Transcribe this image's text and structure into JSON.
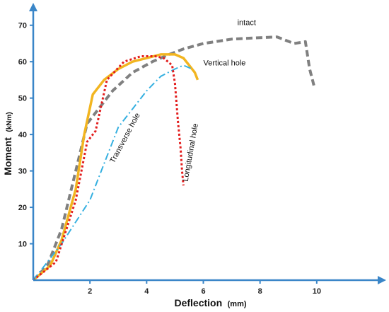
{
  "chart_data": {
    "type": "line",
    "xlabel": "Deflection",
    "xunit": "(mm)",
    "ylabel": "Moment",
    "yunit": "(kNm)",
    "xlim": [
      0,
      12
    ],
    "ylim": [
      0,
      75
    ],
    "xticks": [
      2,
      4,
      6,
      8,
      10
    ],
    "yticks": [
      10,
      20,
      30,
      40,
      50,
      60,
      70
    ],
    "grid": false,
    "axis_color": "#3a86c8",
    "series": [
      {
        "name": "intact",
        "color": "#808080",
        "dash": "9 5",
        "width": 4,
        "x": [
          0,
          0.5,
          1.0,
          1.5,
          1.9,
          2.3,
          2.8,
          3.5,
          4.2,
          4.8,
          5.3,
          6.0,
          7.0,
          8.0,
          8.6,
          9.2,
          9.6,
          9.75,
          9.85,
          9.9
        ],
        "y": [
          0,
          4,
          14,
          30,
          43,
          47,
          52,
          57,
          60,
          62,
          63.5,
          65,
          66.2,
          66.6,
          66.8,
          65,
          65.5,
          58,
          55,
          53.5
        ]
      },
      {
        "name": "Vertical hole",
        "color": "#f2b520",
        "dash": "",
        "width": 3.5,
        "x": [
          0,
          0.6,
          1.0,
          1.5,
          1.8,
          2.1,
          2.5,
          3.0,
          3.5,
          4.0,
          4.5,
          5.0,
          5.3,
          5.5,
          5.7,
          5.8
        ],
        "y": [
          0,
          4,
          11,
          25,
          40,
          51,
          55,
          58,
          60,
          61,
          62,
          62,
          61,
          59,
          57,
          55
        ]
      },
      {
        "name": "Transverse hole",
        "color": "#35b0e0",
        "dash": "10 4 2 4",
        "width": 2,
        "x": [
          0,
          1.0,
          2.0,
          2.5,
          3.0,
          3.5,
          4.0,
          4.5,
          5.0,
          5.3,
          5.6
        ],
        "y": [
          0,
          10,
          22,
          32,
          42,
          47,
          52,
          56,
          58,
          59,
          58
        ]
      },
      {
        "name": "Longitudinal hole",
        "color": "#e31e1e",
        "dash": "3 3",
        "width": 3,
        "x": [
          0,
          0.8,
          1.5,
          1.9,
          2.2,
          2.6,
          3.2,
          3.8,
          4.3,
          4.6,
          4.9,
          5.0,
          5.1,
          5.2,
          5.25,
          5.3
        ],
        "y": [
          0,
          5,
          22,
          38,
          41,
          55,
          60,
          61.5,
          61.5,
          61,
          59,
          54,
          44,
          36,
          30,
          26
        ]
      }
    ],
    "annotations": [
      {
        "text": "intact",
        "x": 7.2,
        "y": 70,
        "rotate": 0
      },
      {
        "text": "Vertical hole",
        "x": 6.0,
        "y": 59,
        "rotate": 0
      },
      {
        "text": "Transverse hole",
        "x": 2.85,
        "y": 32,
        "rotate": -62
      },
      {
        "text": "Longitudinal hole",
        "x": 5.45,
        "y": 27,
        "rotate": -80
      }
    ]
  }
}
